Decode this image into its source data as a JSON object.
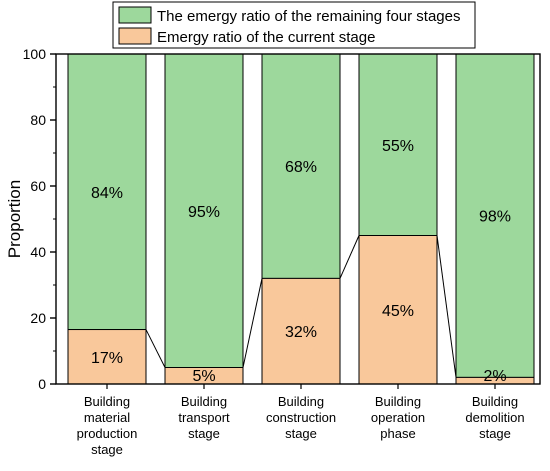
{
  "chart_data": {
    "type": "bar",
    "stacked": true,
    "categories": [
      [
        "Building",
        "material",
        "production",
        "stage"
      ],
      [
        "Building",
        "transport",
        "stage"
      ],
      [
        "Building",
        "construction",
        "stage"
      ],
      [
        "Building",
        "operation",
        "phase"
      ],
      [
        "Building",
        "demolition",
        "stage"
      ]
    ],
    "series": [
      {
        "name": "Emergy ratio of the current stage",
        "color": "#f9c89b",
        "values": [
          16.5,
          5,
          32,
          45,
          2
        ],
        "labels": [
          "17%",
          "5%",
          "32%",
          "45%",
          "2%"
        ]
      },
      {
        "name": "The emergy ratio of the remaining four stages",
        "color": "#9dd89c",
        "values": [
          83.5,
          95,
          68,
          55,
          98
        ],
        "labels": [
          "84%",
          "95%",
          "68%",
          "55%",
          "98%"
        ]
      }
    ],
    "ylabel": "Proportion",
    "xlabel": "",
    "ylim": [
      0,
      100
    ],
    "yticks": [
      0,
      20,
      40,
      60,
      80,
      100
    ],
    "connector_lines": true,
    "legend_position": "top",
    "grid": false
  }
}
